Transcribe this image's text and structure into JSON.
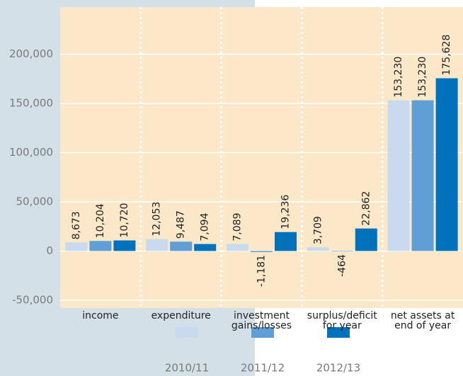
{
  "chart_data": {
    "type": "bar",
    "categories": [
      "income",
      "expenditure",
      "investment\ngains/losses",
      "surplus/deficit\nfor year",
      "net assets at\nend of year"
    ],
    "series": [
      {
        "name": "2010/11",
        "color": "#c9d9ee",
        "values": [
          8673,
          12053,
          7089,
          3709,
          153230
        ],
        "value_labels": [
          "8,673",
          "12,053",
          "7,089",
          "3,709",
          "153,230"
        ]
      },
      {
        "name": "2011/12",
        "color": "#5f9fd6",
        "values": [
          10204,
          9487,
          -1181,
          -464,
          153230
        ],
        "value_labels": [
          "10,204",
          "9,487",
          "-1,181",
          "-464",
          "153,230"
        ]
      },
      {
        "name": "2012/13",
        "color": "#0072bc",
        "values": [
          10720,
          7094,
          19236,
          22862,
          175628
        ],
        "value_labels": [
          "10,720",
          "7,094",
          "19,236",
          "22,862",
          "175,628"
        ]
      }
    ],
    "ylim": [
      -58000,
      248000
    ],
    "yticks": [
      {
        "value": -50000,
        "label": "-50,000"
      },
      0,
      {
        "value": 50000,
        "label": "50,000"
      },
      {
        "value": 100000,
        "label": "100,000"
      },
      {
        "value": 150000,
        "label": "150,000"
      },
      {
        "value": 200000,
        "label": "200,000"
      }
    ],
    "grid": true
  }
}
